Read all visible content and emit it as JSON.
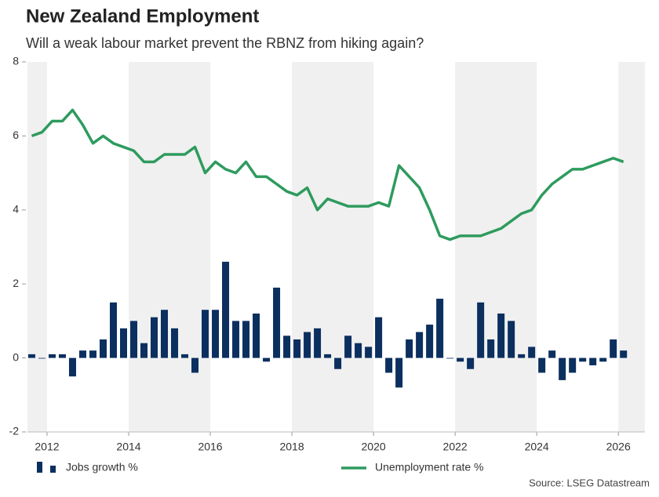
{
  "chart_data": {
    "type": "combo",
    "title": "New Zealand Employment",
    "subtitle": "Will a weak labour market prevent the RBNZ from hiking again?",
    "source": "Source: LSEG Datastream",
    "x": [
      2011.625,
      2011.875,
      2012.125,
      2012.375,
      2012.625,
      2012.875,
      2013.125,
      2013.375,
      2013.625,
      2013.875,
      2014.125,
      2014.375,
      2014.625,
      2014.875,
      2015.125,
      2015.375,
      2015.625,
      2015.875,
      2016.125,
      2016.375,
      2016.625,
      2016.875,
      2017.125,
      2017.375,
      2017.625,
      2017.875,
      2018.125,
      2018.375,
      2018.625,
      2018.875,
      2019.125,
      2019.375,
      2019.625,
      2019.875,
      2020.125,
      2020.375,
      2020.625,
      2020.875,
      2021.125,
      2021.375,
      2021.625,
      2021.875,
      2022.125,
      2022.375,
      2022.625,
      2022.875,
      2023.125,
      2023.375,
      2023.625,
      2023.875,
      2024.125,
      2024.375,
      2024.625,
      2024.875,
      2025.125,
      2025.375,
      2025.625,
      2025.875,
      2026.125
    ],
    "series": [
      {
        "name": "Jobs growth %",
        "type": "bar",
        "color": "#0b2f5f",
        "values": [
          0.1,
          0,
          0.1,
          0.1,
          -0.5,
          0.2,
          0.2,
          0.5,
          1.5,
          0.8,
          1.0,
          0.4,
          1.1,
          1.3,
          0.8,
          0.1,
          -0.4,
          1.3,
          1.3,
          2.6,
          1.0,
          1.0,
          1.2,
          -0.1,
          1.9,
          0.6,
          0.5,
          0.7,
          0.8,
          0.1,
          -0.3,
          0.6,
          0.4,
          0.3,
          1.1,
          -0.4,
          -0.8,
          0.5,
          0.7,
          0.9,
          1.6,
          0.0,
          -0.1,
          -0.3,
          1.5,
          0.5,
          1.2,
          1.0,
          0.1,
          0.3,
          -0.4,
          0.2,
          -0.6,
          -0.4,
          -0.1,
          -0.2,
          -0.1,
          0.5,
          0.2
        ]
      },
      {
        "name": "Unemployment rate %",
        "type": "line",
        "color": "#2e9b5e",
        "values": [
          6.0,
          6.1,
          6.4,
          6.4,
          6.7,
          6.3,
          5.8,
          6.0,
          5.8,
          5.7,
          5.6,
          5.3,
          5.3,
          5.5,
          5.5,
          5.5,
          5.7,
          5.0,
          5.3,
          5.1,
          5.0,
          5.3,
          4.9,
          4.9,
          4.7,
          4.5,
          4.4,
          4.6,
          4.0,
          4.3,
          4.2,
          4.1,
          4.1,
          4.1,
          4.2,
          4.1,
          5.2,
          4.9,
          4.6,
          4.0,
          3.3,
          3.2,
          3.3,
          3.3,
          3.3,
          3.4,
          3.5,
          3.7,
          3.9,
          4.0,
          4.4,
          4.7,
          4.9,
          5.1,
          5.1,
          5.2,
          5.3,
          5.4,
          5.3
        ]
      }
    ],
    "xlim": [
      2011.52,
      2026.65
    ],
    "xticks": [
      2012,
      2014,
      2016,
      2018,
      2020,
      2022,
      2024,
      2026
    ],
    "ylim": [
      -2,
      8
    ],
    "yticks": [
      -2,
      0,
      2,
      4,
      6,
      8
    ],
    "band_color": "#f0f0f0"
  }
}
